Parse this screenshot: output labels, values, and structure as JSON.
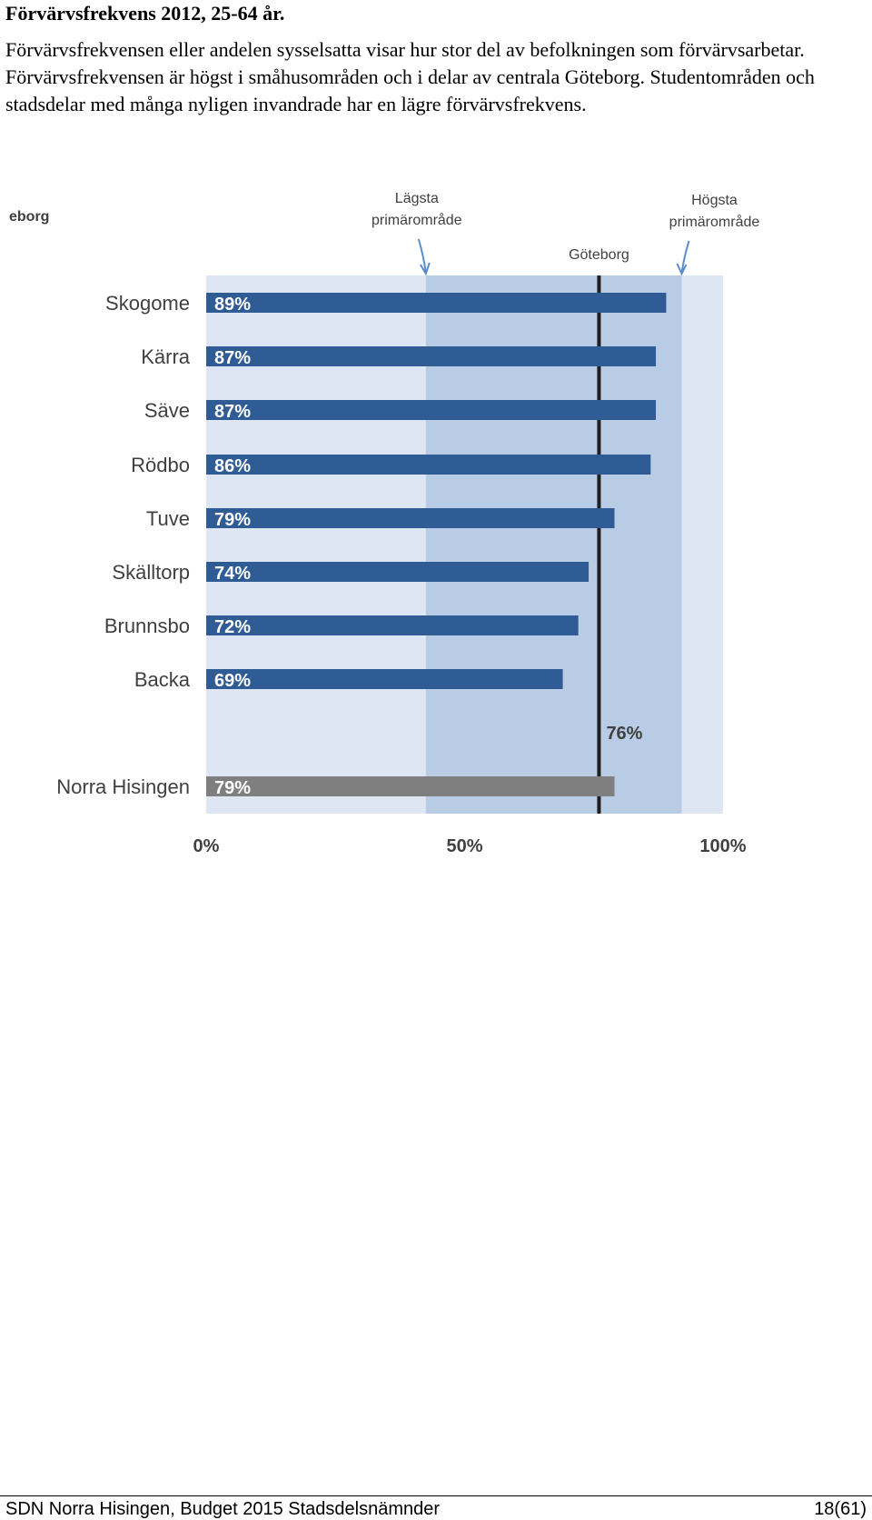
{
  "page": {
    "heading": "Förvärvsfrekvens 2012, 25-64 år.",
    "body": "Förvärvsfrekvensen eller andelen sysselsatta visar hur stor del av befolkningen som förvärvsarbetar. Förvärvsfrekvensen är högst i småhusområden och i delar av centrala Göteborg. Studentområden och stadsdelar med många nyligen invandrade har en lägre förvärvsfrekvens."
  },
  "chart_data": {
    "type": "bar",
    "orientation": "horizontal",
    "corner_label": "eborg",
    "categories": [
      "Skogome",
      "Kärra",
      "Säve",
      "Rödbo",
      "Tuve",
      "Skälltorp",
      "Brunnsbo",
      "Backa",
      "Norra Hisingen"
    ],
    "values": [
      89,
      87,
      87,
      86,
      79,
      74,
      72,
      69,
      79
    ],
    "value_labels": [
      "89%",
      "87%",
      "87%",
      "86%",
      "79%",
      "74%",
      "72%",
      "69%",
      "79%"
    ],
    "highlight_category": "Norra Hisingen",
    "xlim": [
      0,
      100
    ],
    "xticks": [
      "0%",
      "50%",
      "100%"
    ],
    "reference_line": {
      "label": "Göteborg",
      "value": 76,
      "value_label": "76%"
    },
    "range_band": {
      "low": 42.5,
      "high": 92
    },
    "annotations": {
      "lowest": "Lägsta primärområde",
      "highest": "Högsta primärområde"
    },
    "colors": {
      "bar": "#2f5c94",
      "highlight_bar": "#7f7f7f",
      "band_outer": "#dde6f2",
      "band_inner": "#b9cce6",
      "reference_line": "#1f1f1f",
      "text": "#404040",
      "bar_label": "#ffffff"
    }
  },
  "footer": {
    "left": "SDN Norra Hisingen, Budget 2015 Stadsdelsnämnder",
    "right": "18(61)"
  }
}
